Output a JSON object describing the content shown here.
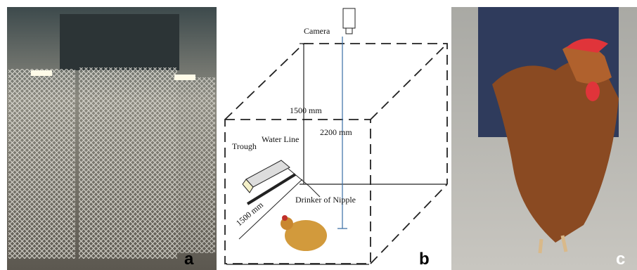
{
  "panels": [
    {
      "label": "a"
    },
    {
      "label": "b",
      "labels": {
        "camera": "Camera",
        "height_inner": "1500 mm",
        "height_camera": "2200 mm",
        "trough": "Trough",
        "water_line": "Water Line",
        "drinker": "Drinker of Nipple",
        "depth": "1500 mm"
      }
    },
    {
      "label": "c"
    }
  ]
}
